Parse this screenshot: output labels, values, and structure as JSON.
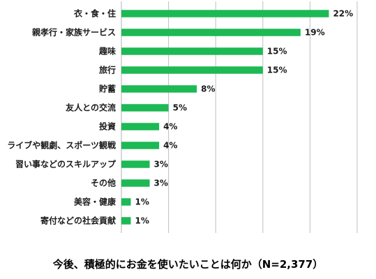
{
  "chart_data": {
    "type": "bar",
    "orientation": "horizontal",
    "categories": [
      "衣・食・住",
      "親孝行・家族サービス",
      "趣味",
      "旅行",
      "貯蓄",
      "友人との交流",
      "投資",
      "ライブや観劇、スポーツ観戦",
      "習い事などのスキルアップ",
      "その他",
      "美容・健康",
      "寄付などの社会貢献"
    ],
    "values": [
      22,
      19,
      15,
      15,
      8,
      5,
      4,
      4,
      3,
      3,
      1,
      1
    ],
    "value_labels": [
      "22%",
      "19%",
      "15%",
      "15%",
      "8%",
      "5%",
      "4%",
      "4%",
      "3%",
      "3%",
      "1%",
      "1%"
    ],
    "xlim": [
      0,
      25
    ],
    "grid": true,
    "bar_color": "#1db954",
    "grid_color": "#bfbfbf"
  },
  "caption": "今後、積極的にお金を使いたいことは何か（N=2,377）"
}
